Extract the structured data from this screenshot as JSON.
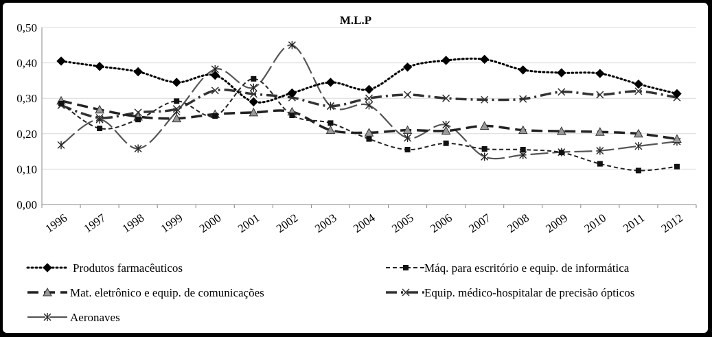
{
  "chart_data": {
    "type": "line",
    "title": "M.L.P",
    "xlabel": "",
    "ylabel": "",
    "ylim": [
      0,
      0.5
    ],
    "yticks": [
      "0,00",
      "0,10",
      "0,20",
      "0,30",
      "0,40",
      "0,50"
    ],
    "grid": "horizontal",
    "legend_placement": "bottom",
    "categories": [
      "1996",
      "1997",
      "1998",
      "1999",
      "2000",
      "2001",
      "2002",
      "2003",
      "2004",
      "2005",
      "2006",
      "2007",
      "2008",
      "2009",
      "2010",
      "2011",
      "2012"
    ],
    "series": [
      {
        "name": "Produtos farmacêuticos",
        "marker": "diamond",
        "dash": "dotted",
        "color": "#000000",
        "values": [
          0.405,
          0.39,
          0.375,
          0.345,
          0.365,
          0.29,
          0.315,
          0.345,
          0.325,
          0.388,
          0.407,
          0.41,
          0.38,
          0.372,
          0.37,
          0.34,
          0.313
        ]
      },
      {
        "name": "Máq. para escritório e equip. de informática",
        "marker": "square",
        "dash": "short-dash",
        "color": "#222222",
        "values": [
          0.285,
          0.215,
          0.24,
          0.292,
          0.25,
          0.355,
          0.252,
          0.23,
          0.185,
          0.155,
          0.173,
          0.157,
          0.155,
          0.147,
          0.115,
          0.096,
          0.107
        ]
      },
      {
        "name": "Mat. eletrônico e equip. de comunicações",
        "marker": "triangle",
        "dash": "long-dash",
        "color": "#222222",
        "values": [
          0.293,
          0.268,
          0.248,
          0.243,
          0.255,
          0.26,
          0.262,
          0.21,
          0.203,
          0.21,
          0.208,
          0.222,
          0.21,
          0.207,
          0.205,
          0.2,
          0.185
        ]
      },
      {
        "name": "Equip. médico-hospitalar de  precisão ópticos",
        "marker": "x",
        "dash": "dash-dot",
        "color": "#333333",
        "values": [
          0.28,
          0.245,
          0.26,
          0.27,
          0.322,
          0.312,
          0.302,
          0.278,
          0.3,
          0.31,
          0.3,
          0.296,
          0.298,
          0.318,
          0.31,
          0.32,
          0.302
        ]
      },
      {
        "name": "Aeronaves",
        "marker": "star",
        "dash": "long-dash-solid",
        "color": "#555555",
        "values": [
          0.168,
          0.24,
          0.158,
          0.262,
          0.382,
          0.33,
          0.45,
          0.278,
          0.28,
          0.188,
          0.225,
          0.135,
          0.14,
          0.148,
          0.152,
          0.165,
          0.178
        ]
      }
    ]
  }
}
